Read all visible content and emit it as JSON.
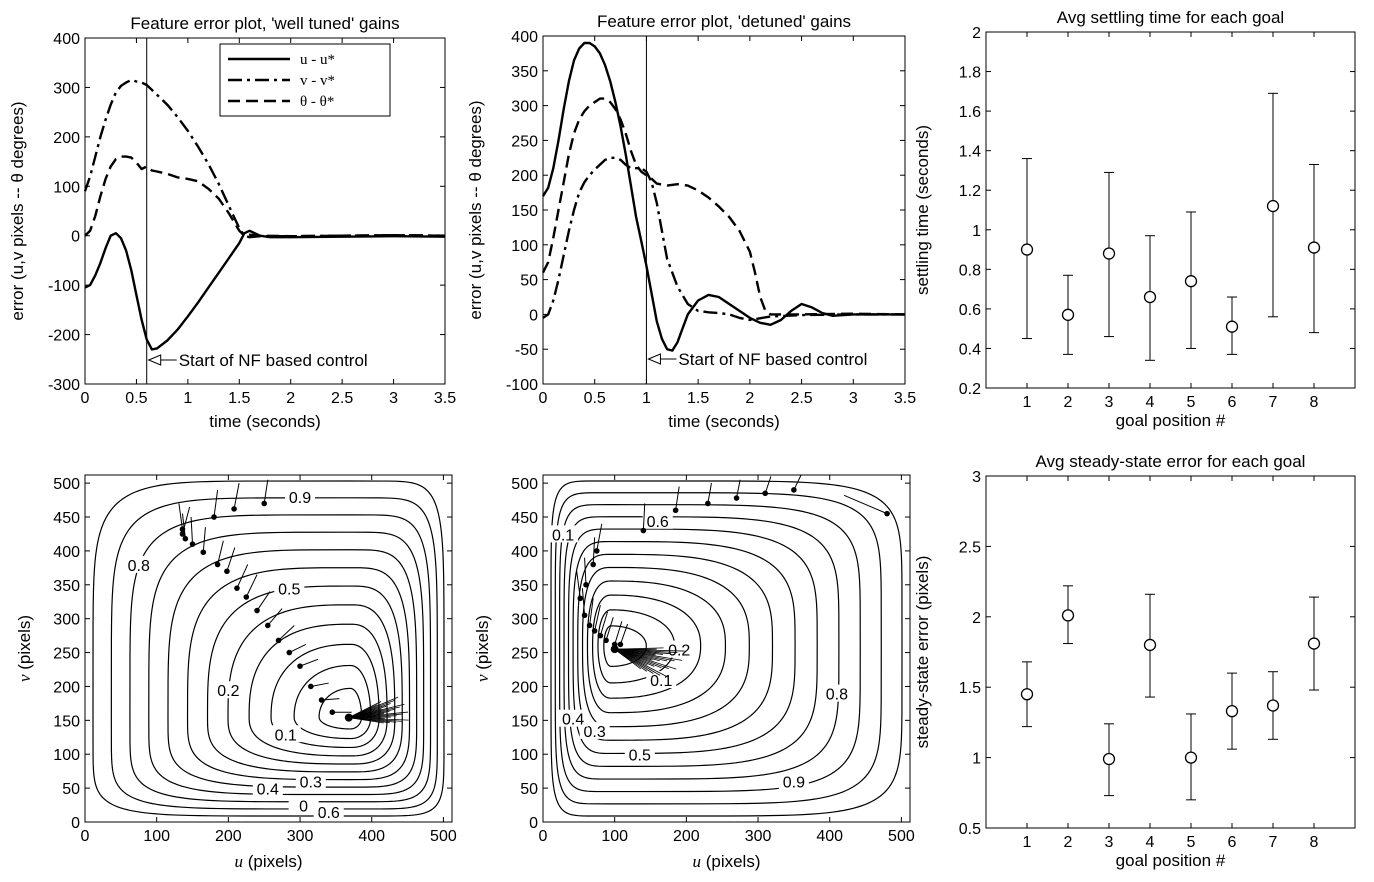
{
  "chart_data": [
    {
      "type": "line",
      "title": "Feature error plot, 'well tuned' gains",
      "xlabel": "time (seconds)",
      "ylabel": "error (u,v  pixels -- θ degrees)",
      "xlim": [
        0,
        3.5
      ],
      "ylim": [
        -300,
        400
      ],
      "xticks": [
        "0",
        "0.5",
        "1",
        "1.5",
        "2",
        "2.5",
        "3",
        "3.5"
      ],
      "yticks": [
        "-300",
        "-200",
        "-100",
        "0",
        "100",
        "200",
        "300",
        "400"
      ],
      "legend": [
        "u - u*",
        "v - v*",
        "θ - θ*"
      ],
      "legend_position": "top-right",
      "annotation": {
        "text": "Start of NF based control",
        "x": 0.6
      },
      "series": [
        {
          "name": "u - u*",
          "style": "solid",
          "x": [
            0,
            0.05,
            0.1,
            0.15,
            0.2,
            0.25,
            0.3,
            0.35,
            0.4,
            0.45,
            0.5,
            0.55,
            0.6,
            0.65,
            0.7,
            0.8,
            0.9,
            1.0,
            1.1,
            1.2,
            1.3,
            1.4,
            1.5,
            1.55,
            1.6,
            1.65,
            1.7,
            1.8,
            2.0,
            2.5,
            3.0,
            3.5
          ],
          "y": [
            -105,
            -100,
            -80,
            -55,
            -25,
            0,
            5,
            -5,
            -30,
            -70,
            -120,
            -170,
            -210,
            -230,
            -228,
            -212,
            -190,
            -163,
            -135,
            -105,
            -75,
            -45,
            -15,
            5,
            10,
            5,
            0,
            -3,
            -3,
            -2,
            -1,
            -2
          ]
        },
        {
          "name": "v - v*",
          "style": "dashdot",
          "x": [
            0,
            0.05,
            0.1,
            0.15,
            0.2,
            0.25,
            0.3,
            0.35,
            0.4,
            0.45,
            0.5,
            0.55,
            0.6,
            0.65,
            0.7,
            0.8,
            0.9,
            1.0,
            1.1,
            1.2,
            1.3,
            1.4,
            1.5,
            1.55,
            1.6,
            1.7,
            2.0,
            2.5,
            3.0,
            3.5
          ],
          "y": [
            90,
            120,
            160,
            200,
            235,
            265,
            290,
            303,
            310,
            315,
            312,
            310,
            305,
            295,
            285,
            265,
            240,
            212,
            180,
            145,
            105,
            60,
            15,
            0,
            -3,
            -1,
            -1,
            0,
            1,
            0
          ]
        },
        {
          "name": "θ - θ*",
          "style": "dashed",
          "x": [
            0,
            0.05,
            0.1,
            0.15,
            0.2,
            0.25,
            0.3,
            0.35,
            0.4,
            0.45,
            0.5,
            0.55,
            0.6,
            0.65,
            0.7,
            0.8,
            0.9,
            1.0,
            1.1,
            1.2,
            1.3,
            1.4,
            1.5,
            1.55,
            1.6,
            1.7,
            2.0,
            2.5,
            3.0,
            3.5
          ],
          "y": [
            0,
            10,
            40,
            80,
            115,
            140,
            155,
            160,
            160,
            158,
            148,
            135,
            140,
            132,
            130,
            125,
            118,
            115,
            110,
            95,
            75,
            45,
            10,
            0,
            2,
            0,
            -1,
            0,
            1,
            0
          ]
        }
      ]
    },
    {
      "type": "line",
      "title": "Feature error plot, 'detuned' gains",
      "xlabel": "time (seconds)",
      "ylabel": "error (u,v  pixels -- θ degrees)",
      "xlim": [
        0,
        3.5
      ],
      "ylim": [
        -100,
        400
      ],
      "xticks": [
        "0",
        "0.5",
        "1",
        "1.5",
        "2",
        "2.5",
        "3",
        "3.5"
      ],
      "yticks": [
        "-100",
        "-50",
        "0",
        "50",
        "100",
        "150",
        "200",
        "250",
        "300",
        "350",
        "400"
      ],
      "annotation": {
        "text": "Start of NF based control",
        "x": 1.0
      },
      "series": [
        {
          "name": "u - u*",
          "style": "solid",
          "x": [
            0,
            0.05,
            0.1,
            0.15,
            0.2,
            0.25,
            0.3,
            0.35,
            0.4,
            0.45,
            0.5,
            0.55,
            0.6,
            0.65,
            0.7,
            0.75,
            0.8,
            0.85,
            0.9,
            0.95,
            1.0,
            1.05,
            1.1,
            1.15,
            1.2,
            1.25,
            1.3,
            1.35,
            1.4,
            1.5,
            1.6,
            1.7,
            1.8,
            1.9,
            2.0,
            2.1,
            2.2,
            2.3,
            2.4,
            2.5,
            2.6,
            2.7,
            2.8,
            3.0,
            3.5
          ],
          "y": [
            170,
            182,
            210,
            250,
            295,
            335,
            365,
            382,
            390,
            390,
            385,
            375,
            358,
            335,
            305,
            270,
            230,
            185,
            140,
            105,
            70,
            30,
            -10,
            -35,
            -50,
            -52,
            -40,
            -20,
            0,
            20,
            28,
            25,
            15,
            5,
            -5,
            -12,
            -15,
            -8,
            5,
            15,
            10,
            2,
            -2,
            0,
            0
          ]
        },
        {
          "name": "v - v*",
          "style": "dashdot",
          "x": [
            0,
            0.05,
            0.1,
            0.15,
            0.2,
            0.25,
            0.3,
            0.35,
            0.4,
            0.45,
            0.5,
            0.55,
            0.6,
            0.65,
            0.7,
            0.75,
            0.8,
            0.85,
            0.9,
            0.95,
            1.0,
            1.05,
            1.1,
            1.15,
            1.2,
            1.3,
            1.4,
            1.5,
            1.6,
            1.7,
            1.8,
            1.9,
            2.0,
            2.2,
            2.5,
            3.0,
            3.5
          ],
          "y": [
            -5,
            0,
            20,
            50,
            85,
            120,
            150,
            175,
            190,
            200,
            208,
            215,
            222,
            225,
            225,
            222,
            215,
            210,
            210,
            210,
            205,
            190,
            160,
            120,
            80,
            40,
            15,
            5,
            3,
            2,
            0,
            -5,
            -8,
            -3,
            -1,
            0,
            0
          ]
        },
        {
          "name": "θ - θ*",
          "style": "dashed",
          "x": [
            0,
            0.05,
            0.1,
            0.15,
            0.2,
            0.25,
            0.3,
            0.35,
            0.4,
            0.45,
            0.5,
            0.55,
            0.6,
            0.65,
            0.7,
            0.75,
            0.8,
            0.85,
            0.9,
            0.95,
            1.0,
            1.05,
            1.1,
            1.2,
            1.3,
            1.4,
            1.5,
            1.6,
            1.7,
            1.8,
            1.9,
            2.0,
            2.05,
            2.1,
            2.15,
            2.2,
            2.5,
            3.0,
            3.5
          ],
          "y": [
            60,
            75,
            110,
            150,
            190,
            230,
            260,
            280,
            292,
            300,
            305,
            310,
            310,
            305,
            295,
            280,
            260,
            235,
            215,
            205,
            200,
            195,
            188,
            185,
            187,
            185,
            178,
            168,
            155,
            140,
            120,
            90,
            60,
            25,
            5,
            0,
            0,
            1,
            0
          ]
        }
      ]
    },
    {
      "type": "errorbar",
      "title": "Avg settling time for each goal",
      "xlabel": "goal position #",
      "ylabel": "settling time (seconds)",
      "xlim": [
        0,
        9
      ],
      "ylim": [
        0.2,
        2
      ],
      "xticks": [
        "1",
        "2",
        "3",
        "4",
        "5",
        "6",
        "7",
        "8"
      ],
      "yticks": [
        "0.2",
        "0.4",
        "0.6",
        "0.8",
        "1",
        "1.2",
        "1.4",
        "1.6",
        "1.8",
        "2"
      ],
      "x": [
        1,
        2,
        3,
        4,
        5,
        6,
        7,
        8
      ],
      "mean": [
        0.9,
        0.57,
        0.88,
        0.66,
        0.74,
        0.51,
        1.12,
        0.91
      ],
      "lower": [
        0.45,
        0.37,
        0.46,
        0.34,
        0.4,
        0.37,
        0.56,
        0.48
      ],
      "upper": [
        1.36,
        0.77,
        1.29,
        0.97,
        1.09,
        0.66,
        1.69,
        1.33
      ]
    },
    {
      "type": "contour",
      "title": "",
      "xlabel": "u (pixels)",
      "ylabel": "v (pixels)",
      "xlim": [
        0,
        512
      ],
      "ylim": [
        0,
        512
      ],
      "xticks": [
        "0",
        "100",
        "200",
        "300",
        "400",
        "500"
      ],
      "yticks": [
        "0",
        "50",
        "100",
        "150",
        "200",
        "250",
        "300",
        "350",
        "400",
        "450",
        "500"
      ],
      "center": [
        370,
        155
      ],
      "levels": [
        0.1,
        0.2,
        0.3,
        0.4,
        0.5,
        0.6,
        0.7,
        0.8,
        0.9
      ],
      "contour_labels": [
        {
          "text": "0.9",
          "u": 300,
          "v": 475
        },
        {
          "text": "0.8",
          "u": 75,
          "v": 375
        },
        {
          "text": "0.5",
          "u": 285,
          "v": 340
        },
        {
          "text": "0.2",
          "u": 200,
          "v": 190
        },
        {
          "text": "0.1",
          "u": 280,
          "v": 125
        },
        {
          "text": "0.3",
          "u": 315,
          "v": 55
        },
        {
          "text": "0.4",
          "u": 255,
          "v": 45
        },
        {
          "text": "0.6",
          "u": 340,
          "v": 10
        },
        {
          "text": "0",
          "u": 305,
          "v": 20
        }
      ],
      "vectors": [
        [
          136,
          432,
          131,
          470
        ],
        [
          140,
          418,
          136,
          455
        ],
        [
          150,
          410,
          148,
          450
        ],
        [
          165,
          398,
          168,
          435
        ],
        [
          185,
          380,
          193,
          415
        ],
        [
          198,
          370,
          209,
          405
        ],
        [
          212,
          345,
          227,
          380
        ],
        [
          225,
          332,
          240,
          365
        ],
        [
          240,
          312,
          258,
          340
        ],
        [
          255,
          290,
          275,
          315
        ],
        [
          270,
          268,
          292,
          290
        ],
        [
          285,
          250,
          308,
          262
        ],
        [
          300,
          230,
          325,
          240
        ],
        [
          315,
          200,
          340,
          205
        ],
        [
          330,
          180,
          355,
          182
        ],
        [
          345,
          162,
          372,
          162
        ],
        [
          136,
          425,
          146,
          465
        ],
        [
          180,
          450,
          185,
          490
        ],
        [
          208,
          462,
          215,
          500
        ],
        [
          250,
          470,
          255,
          505
        ]
      ],
      "convergence": {
        "u": 368,
        "v": 154,
        "len": 60
      }
    },
    {
      "type": "contour",
      "title": "",
      "xlabel": "u (pixels)",
      "ylabel": "v (pixels)",
      "xlim": [
        0,
        512
      ],
      "ylim": [
        0,
        512
      ],
      "xticks": [
        "0",
        "100",
        "200",
        "300",
        "400",
        "500"
      ],
      "yticks": [
        "0",
        "50",
        "100",
        "150",
        "200",
        "250",
        "300",
        "350",
        "400",
        "450",
        "500"
      ],
      "center": [
        95,
        260
      ],
      "levels": [
        0.1,
        0.2,
        0.3,
        0.4,
        0.5,
        0.6,
        0.7,
        0.8,
        0.9
      ],
      "contour_labels": [
        {
          "text": "0.9",
          "u": 350,
          "v": 55
        },
        {
          "text": "0.8",
          "u": 410,
          "v": 185
        },
        {
          "text": "0.6",
          "u": 160,
          "v": 440
        },
        {
          "text": "0.5",
          "u": 135,
          "v": 95
        },
        {
          "text": "0.3",
          "u": 72,
          "v": 130
        },
        {
          "text": "0.4",
          "u": 42,
          "v": 148
        },
        {
          "text": "0.2",
          "u": 190,
          "v": 250
        },
        {
          "text": "0.1",
          "u": 165,
          "v": 205
        },
        {
          "text": "0.1",
          "u": 28,
          "v": 420
        }
      ],
      "vectors": [
        [
          52,
          330,
          47,
          370
        ],
        [
          58,
          305,
          55,
          345
        ],
        [
          65,
          290,
          70,
          330
        ],
        [
          72,
          282,
          80,
          320
        ],
        [
          80,
          275,
          90,
          310
        ],
        [
          88,
          268,
          98,
          302
        ],
        [
          100,
          262,
          110,
          296
        ],
        [
          108,
          262,
          118,
          292
        ],
        [
          60,
          350,
          58,
          390
        ],
        [
          70,
          380,
          72,
          420
        ],
        [
          75,
          400,
          82,
          440
        ],
        [
          140,
          430,
          142,
          470
        ],
        [
          185,
          460,
          190,
          495
        ],
        [
          230,
          470,
          235,
          500
        ],
        [
          270,
          478,
          275,
          505
        ],
        [
          310,
          485,
          318,
          510
        ],
        [
          350,
          490,
          360,
          512
        ],
        [
          480,
          455,
          420,
          482
        ]
      ],
      "convergence": {
        "u": 100,
        "v": 255,
        "len": 70
      }
    },
    {
      "type": "errorbar",
      "title": "Avg steady-state error for each goal",
      "xlabel": "goal position #",
      "ylabel": "steady-state error (pixels)",
      "xlim": [
        0,
        9
      ],
      "ylim": [
        0.5,
        3
      ],
      "xticks": [
        "1",
        "2",
        "3",
        "4",
        "5",
        "6",
        "7",
        "8"
      ],
      "yticks": [
        "0.5",
        "1",
        "1.5",
        "2",
        "2.5",
        "3"
      ],
      "x": [
        1,
        2,
        3,
        4,
        5,
        6,
        7,
        8
      ],
      "mean": [
        1.45,
        2.01,
        0.99,
        1.8,
        1.0,
        1.33,
        1.37,
        1.81
      ],
      "lower": [
        1.22,
        1.81,
        0.73,
        1.43,
        0.7,
        1.06,
        1.13,
        1.48
      ],
      "upper": [
        1.68,
        2.22,
        1.24,
        2.16,
        1.31,
        1.6,
        1.61,
        2.14
      ]
    }
  ]
}
